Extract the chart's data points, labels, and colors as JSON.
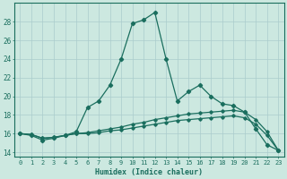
{
  "xlabel": "Humidex (Indice chaleur)",
  "x_ticks": [
    0,
    1,
    2,
    3,
    4,
    5,
    6,
    7,
    8,
    9,
    10,
    11,
    12,
    13,
    14,
    15,
    16,
    17,
    18,
    19,
    20,
    21,
    22,
    23
  ],
  "ylim": [
    13.5,
    30.0
  ],
  "xlim": [
    -0.5,
    23.5
  ],
  "yticks": [
    14,
    16,
    18,
    20,
    22,
    24,
    26,
    28
  ],
  "bg_color": "#cce8e0",
  "grid_color": "#aacccc",
  "line_color": "#1a6e5e",
  "line1_y": [
    16.0,
    15.8,
    15.3,
    15.5,
    15.8,
    16.2,
    18.8,
    19.5,
    21.2,
    24.0,
    27.8,
    28.2,
    29.0,
    24.0,
    19.5,
    20.5,
    21.2,
    20.0,
    19.2,
    19.0,
    18.3,
    16.5,
    14.8,
    14.2
  ],
  "line2_y": [
    16.0,
    15.9,
    15.5,
    15.6,
    15.8,
    16.0,
    16.1,
    16.3,
    16.5,
    16.7,
    17.0,
    17.2,
    17.5,
    17.7,
    17.9,
    18.1,
    18.2,
    18.3,
    18.4,
    18.5,
    18.3,
    17.5,
    16.2,
    14.2
  ],
  "line3_y": [
    16.0,
    15.9,
    15.5,
    15.6,
    15.8,
    16.0,
    16.0,
    16.1,
    16.3,
    16.4,
    16.6,
    16.8,
    17.0,
    17.2,
    17.4,
    17.5,
    17.6,
    17.7,
    17.8,
    17.9,
    17.7,
    17.0,
    15.8,
    14.2
  ]
}
